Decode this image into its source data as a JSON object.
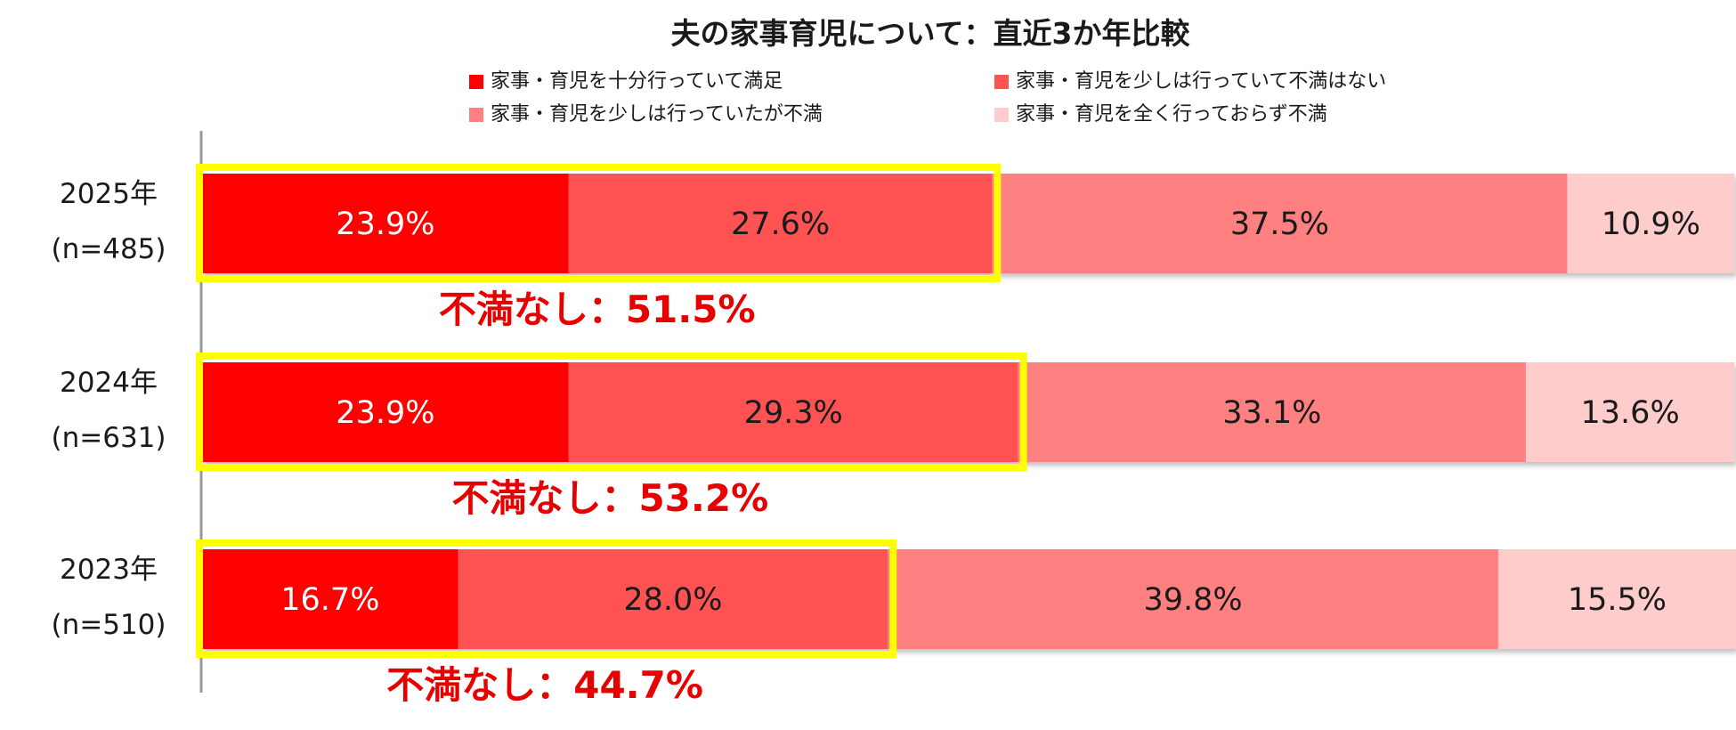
{
  "chart_data": {
    "type": "bar",
    "orientation": "horizontal",
    "stacked": true,
    "normalized_percent": true,
    "title": "夫の家事育児について：直近3か年比較",
    "categories": [
      {
        "year": "2025年",
        "n": "(n=485)"
      },
      {
        "year": "2024年",
        "n": "(n=631)"
      },
      {
        "year": "2023年",
        "n": "(n=510)"
      }
    ],
    "series": [
      {
        "name": "家事・育児を十分行っていて満足",
        "values": [
          23.9,
          23.9,
          16.7
        ],
        "labels": [
          "23.9%",
          "23.9%",
          "16.7%"
        ]
      },
      {
        "name": "家事・育児を少しは行っていて不満はない",
        "values": [
          27.6,
          29.3,
          28.0
        ],
        "labels": [
          "27.6%",
          "29.3%",
          "28.0%"
        ]
      },
      {
        "name": "家事・育児を少しは行っていたが不満",
        "values": [
          37.5,
          33.1,
          39.8
        ],
        "labels": [
          "37.5%",
          "33.1%",
          "39.8%"
        ]
      },
      {
        "name": "家事・育児を全く行っておらず不満",
        "values": [
          10.9,
          13.6,
          15.5
        ],
        "labels": [
          "10.9%",
          "13.6%",
          "15.5%"
        ]
      }
    ],
    "annotations": [
      {
        "text": "不満なし：51.5%",
        "value": 51.5
      },
      {
        "text": "不満なし：53.2%",
        "value": 53.2
      },
      {
        "text": "不満なし：44.7%",
        "value": 44.7
      }
    ],
    "xlim": [
      0,
      100
    ],
    "legend_position": "top",
    "grid": false
  },
  "colors": {
    "series": [
      "#ff0000",
      "#ff5252",
      "#ff8080",
      "#ffcccc"
    ],
    "value_text": [
      "#ffffff",
      "#1a1a1a",
      "#1a1a1a",
      "#1a1a1a"
    ],
    "highlight_box": "#ffff00",
    "annotation_text": "#e60000",
    "axis_line": "#999999"
  }
}
